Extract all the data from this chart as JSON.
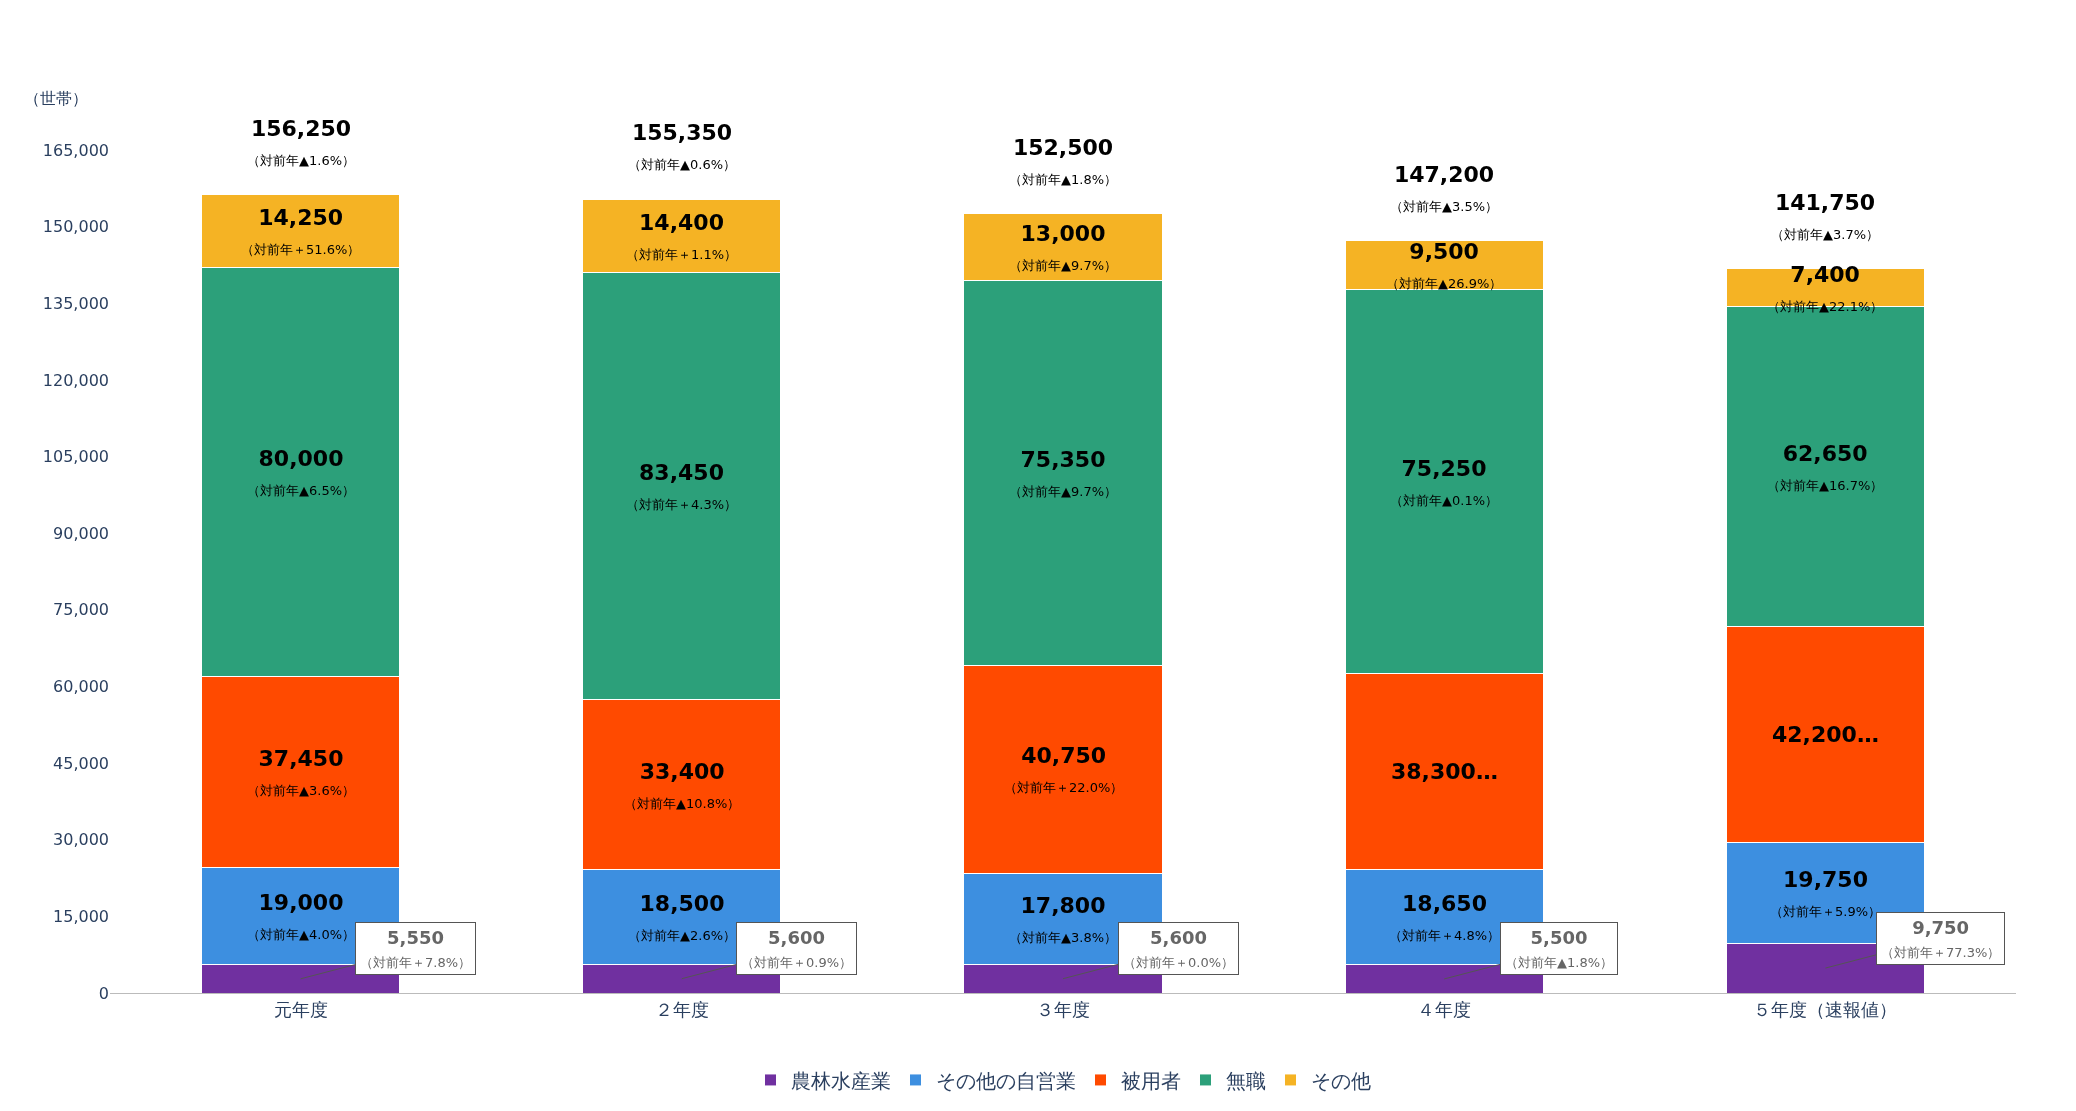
{
  "chart_data": {
    "type": "bar",
    "stacked": true,
    "ylabel": "（世帯）",
    "categories": [
      "元年度",
      "２年度",
      "３年度",
      "４年度",
      "５年度（速報値）"
    ],
    "ylim": [
      0,
      165000
    ],
    "yticks": [
      {
        "value": 0,
        "label": "0"
      },
      {
        "value": 15000,
        "label": "15,000"
      },
      {
        "value": 30000,
        "label": "30,000"
      },
      {
        "value": 45000,
        "label": "45,000"
      },
      {
        "value": 60000,
        "label": "60,000"
      },
      {
        "value": 75000,
        "label": "75,000"
      },
      {
        "value": 90000,
        "label": "90,000"
      },
      {
        "value": 105000,
        "label": "105,000"
      },
      {
        "value": 120000,
        "label": "120,000"
      },
      {
        "value": 135000,
        "label": "135,000"
      },
      {
        "value": 150000,
        "label": "150,000"
      },
      {
        "value": 165000,
        "label": "165,000"
      }
    ],
    "legend": "bottom",
    "series": [
      {
        "name": "農林水産業",
        "color": "#7030a0",
        "values": [
          5550,
          5600,
          5600,
          5500,
          9750
        ],
        "value_labels": [
          "5,550\n（対前年＋7.8%）",
          "5,600\n（対前年＋0.9%）",
          "5,600\n（対前年＋0.0%）",
          "5,500\n（対前年▲1.8%）",
          "9,750\n（対前年＋77.3%）"
        ]
      },
      {
        "name": "その他の自営業",
        "color": "#3d8fe0",
        "values": [
          19000,
          18500,
          17800,
          18650,
          19750
        ],
        "value_labels": [
          "19,000\n（対前年▲4.0%）",
          "18,500\n（対前年▲2.6%）",
          "17,800\n（対前年▲3.8%）",
          "18,650\n（対前年＋4.8%）",
          "19,750\n（対前年＋5.9%）"
        ]
      },
      {
        "name": "被用者",
        "color": "#ff4a00",
        "values": [
          37450,
          33400,
          40750,
          38300,
          42200
        ],
        "value_labels": [
          "37,450\n（対前年▲3.6%）",
          "33,400\n（対前年▲10.8%）",
          "40,750\n（対前年＋22.0%）",
          "38,300…",
          "42,200…"
        ]
      },
      {
        "name": "無職",
        "color": "#2ca07a",
        "values": [
          80000,
          83450,
          75350,
          75250,
          62650
        ],
        "value_labels": [
          "80,000\n（対前年▲6.5%）",
          "83,450\n（対前年＋4.3%）",
          "75,350\n（対前年▲9.7%）",
          "75,250\n（対前年▲0.1%）",
          "62,650\n（対前年▲16.7%）"
        ]
      },
      {
        "name": "その他",
        "color": "#f5b324",
        "values": [
          14250,
          14400,
          13000,
          9500,
          7400
        ],
        "value_labels": [
          "14,250\n（対前年＋51.6%）",
          "14,400\n（対前年＋1.1%）",
          "13,000\n（対前年▲9.7%）",
          "9,500\n（対前年▲26.9%）",
          "7,400\n（対前年▲22.1%）"
        ]
      }
    ],
    "totals": [
      "156,250\n（対前年▲1.6%）",
      "155,350\n（対前年▲0.6%）",
      "152,500\n（対前年▲1.8%）",
      "147,200\n（対前年▲3.5%）",
      "141,750\n（対前年▲3.7%）"
    ]
  }
}
